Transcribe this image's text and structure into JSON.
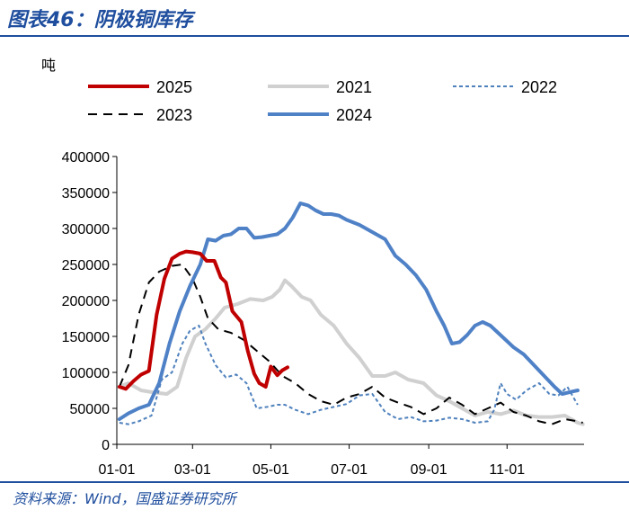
{
  "figure": {
    "title": "图表46：阴极铜库存",
    "source": "资料来源：Wind，国盛证券研究所"
  },
  "colors": {
    "accent": "#1f4e9e"
  },
  "chart_data": {
    "type": "line",
    "ylabel": "吨",
    "xlabel": "",
    "xlim": [
      1,
      365
    ],
    "ylim": [
      0,
      400000
    ],
    "y_ticks": [
      0,
      50000,
      100000,
      150000,
      200000,
      250000,
      300000,
      350000,
      400000
    ],
    "x_ticks": [
      {
        "label": "01-01",
        "day": 1
      },
      {
        "label": "03-01",
        "day": 60
      },
      {
        "label": "05-01",
        "day": 121
      },
      {
        "label": "07-01",
        "day": 182
      },
      {
        "label": "09-01",
        "day": 244
      },
      {
        "label": "11-01",
        "day": 305
      }
    ],
    "legend_position": "top",
    "series": [
      {
        "name": "2025",
        "color": "#c00000",
        "dash": "solid",
        "width": 4,
        "points": [
          [
            3,
            80000
          ],
          [
            8,
            77000
          ],
          [
            14,
            88000
          ],
          [
            20,
            97000
          ],
          [
            26,
            102000
          ],
          [
            32,
            180000
          ],
          [
            38,
            230000
          ],
          [
            44,
            258000
          ],
          [
            50,
            265000
          ],
          [
            55,
            268000
          ],
          [
            60,
            267000
          ],
          [
            66,
            265000
          ],
          [
            71,
            255000
          ],
          [
            77,
            255000
          ],
          [
            82,
            232000
          ],
          [
            86,
            225000
          ],
          [
            91,
            185000
          ],
          [
            98,
            170000
          ],
          [
            103,
            130000
          ],
          [
            108,
            98000
          ],
          [
            112,
            85000
          ],
          [
            117,
            80000
          ],
          [
            121,
            108000
          ],
          [
            126,
            96000
          ],
          [
            130,
            103000
          ],
          [
            134,
            107000
          ]
        ]
      },
      {
        "name": "2021",
        "color": "#d0d0d0",
        "dash": "solid",
        "width": 4,
        "points": [
          [
            3,
            80000
          ],
          [
            10,
            85000
          ],
          [
            20,
            75000
          ],
          [
            30,
            72000
          ],
          [
            40,
            70000
          ],
          [
            48,
            80000
          ],
          [
            55,
            120000
          ],
          [
            62,
            150000
          ],
          [
            70,
            160000
          ],
          [
            78,
            175000
          ],
          [
            85,
            190000
          ],
          [
            95,
            195000
          ],
          [
            105,
            202000
          ],
          [
            115,
            200000
          ],
          [
            122,
            205000
          ],
          [
            128,
            215000
          ],
          [
            132,
            228000
          ],
          [
            137,
            220000
          ],
          [
            145,
            205000
          ],
          [
            152,
            200000
          ],
          [
            160,
            180000
          ],
          [
            170,
            165000
          ],
          [
            180,
            140000
          ],
          [
            190,
            120000
          ],
          [
            200,
            95000
          ],
          [
            210,
            95000
          ],
          [
            218,
            100000
          ],
          [
            228,
            90000
          ],
          [
            240,
            85000
          ],
          [
            250,
            68000
          ],
          [
            260,
            60000
          ],
          [
            270,
            50000
          ],
          [
            280,
            40000
          ],
          [
            290,
            45000
          ],
          [
            300,
            42000
          ],
          [
            310,
            47000
          ],
          [
            320,
            40000
          ],
          [
            330,
            38000
          ],
          [
            340,
            38000
          ],
          [
            350,
            40000
          ],
          [
            360,
            30000
          ],
          [
            364,
            28000
          ]
        ]
      },
      {
        "name": "2022",
        "color": "#4f81bd",
        "dash": "4,3",
        "width": 2,
        "points": [
          [
            3,
            30000
          ],
          [
            10,
            28000
          ],
          [
            18,
            32000
          ],
          [
            28,
            40000
          ],
          [
            36,
            90000
          ],
          [
            44,
            100000
          ],
          [
            52,
            140000
          ],
          [
            58,
            158000
          ],
          [
            65,
            165000
          ],
          [
            70,
            140000
          ],
          [
            78,
            110000
          ],
          [
            86,
            93000
          ],
          [
            94,
            97000
          ],
          [
            102,
            85000
          ],
          [
            110,
            50000
          ],
          [
            118,
            52000
          ],
          [
            126,
            55000
          ],
          [
            132,
            55000
          ],
          [
            140,
            48000
          ],
          [
            150,
            42000
          ],
          [
            160,
            48000
          ],
          [
            170,
            52000
          ],
          [
            180,
            56000
          ],
          [
            190,
            68000
          ],
          [
            200,
            70000
          ],
          [
            210,
            45000
          ],
          [
            220,
            35000
          ],
          [
            230,
            38000
          ],
          [
            240,
            32000
          ],
          [
            250,
            33000
          ],
          [
            260,
            37000
          ],
          [
            270,
            35000
          ],
          [
            280,
            30000
          ],
          [
            290,
            32000
          ],
          [
            295,
            48000
          ],
          [
            300,
            85000
          ],
          [
            305,
            70000
          ],
          [
            312,
            62000
          ],
          [
            320,
            75000
          ],
          [
            330,
            85000
          ],
          [
            338,
            70000
          ],
          [
            345,
            68000
          ],
          [
            352,
            80000
          ],
          [
            360,
            55000
          ]
        ]
      },
      {
        "name": "2023",
        "color": "#000000",
        "dash": "10,7",
        "width": 2,
        "points": [
          [
            3,
            80000
          ],
          [
            10,
            110000
          ],
          [
            18,
            180000
          ],
          [
            26,
            225000
          ],
          [
            34,
            240000
          ],
          [
            44,
            248000
          ],
          [
            52,
            250000
          ],
          [
            60,
            230000
          ],
          [
            66,
            205000
          ],
          [
            72,
            175000
          ],
          [
            80,
            160000
          ],
          [
            90,
            155000
          ],
          [
            100,
            145000
          ],
          [
            110,
            130000
          ],
          [
            120,
            115000
          ],
          [
            130,
            95000
          ],
          [
            140,
            85000
          ],
          [
            150,
            70000
          ],
          [
            160,
            60000
          ],
          [
            170,
            55000
          ],
          [
            180,
            65000
          ],
          [
            190,
            70000
          ],
          [
            200,
            80000
          ],
          [
            210,
            65000
          ],
          [
            220,
            58000
          ],
          [
            230,
            52000
          ],
          [
            240,
            42000
          ],
          [
            250,
            50000
          ],
          [
            260,
            65000
          ],
          [
            270,
            55000
          ],
          [
            280,
            42000
          ],
          [
            290,
            50000
          ],
          [
            300,
            58000
          ],
          [
            310,
            45000
          ],
          [
            320,
            40000
          ],
          [
            330,
            32000
          ],
          [
            340,
            28000
          ],
          [
            350,
            35000
          ],
          [
            360,
            32000
          ],
          [
            364,
            30000
          ]
        ]
      },
      {
        "name": "2024",
        "color": "#4f81c7",
        "dash": "solid",
        "width": 4,
        "points": [
          [
            3,
            35000
          ],
          [
            10,
            43000
          ],
          [
            18,
            50000
          ],
          [
            26,
            55000
          ],
          [
            34,
            85000
          ],
          [
            42,
            140000
          ],
          [
            50,
            185000
          ],
          [
            58,
            220000
          ],
          [
            66,
            250000
          ],
          [
            72,
            285000
          ],
          [
            78,
            283000
          ],
          [
            84,
            290000
          ],
          [
            90,
            292000
          ],
          [
            96,
            300000
          ],
          [
            102,
            300000
          ],
          [
            108,
            287000
          ],
          [
            114,
            288000
          ],
          [
            120,
            290000
          ],
          [
            126,
            292000
          ],
          [
            132,
            300000
          ],
          [
            138,
            315000
          ],
          [
            144,
            335000
          ],
          [
            150,
            332000
          ],
          [
            156,
            325000
          ],
          [
            162,
            320000
          ],
          [
            168,
            320000
          ],
          [
            174,
            318000
          ],
          [
            180,
            312000
          ],
          [
            190,
            305000
          ],
          [
            200,
            295000
          ],
          [
            210,
            285000
          ],
          [
            218,
            262000
          ],
          [
            226,
            250000
          ],
          [
            234,
            235000
          ],
          [
            242,
            215000
          ],
          [
            250,
            185000
          ],
          [
            256,
            165000
          ],
          [
            262,
            140000
          ],
          [
            268,
            142000
          ],
          [
            274,
            152000
          ],
          [
            280,
            165000
          ],
          [
            286,
            170000
          ],
          [
            292,
            165000
          ],
          [
            298,
            155000
          ],
          [
            304,
            145000
          ],
          [
            310,
            135000
          ],
          [
            318,
            125000
          ],
          [
            326,
            110000
          ],
          [
            334,
            95000
          ],
          [
            342,
            80000
          ],
          [
            348,
            70000
          ],
          [
            355,
            73000
          ],
          [
            360,
            75000
          ]
        ]
      }
    ]
  }
}
